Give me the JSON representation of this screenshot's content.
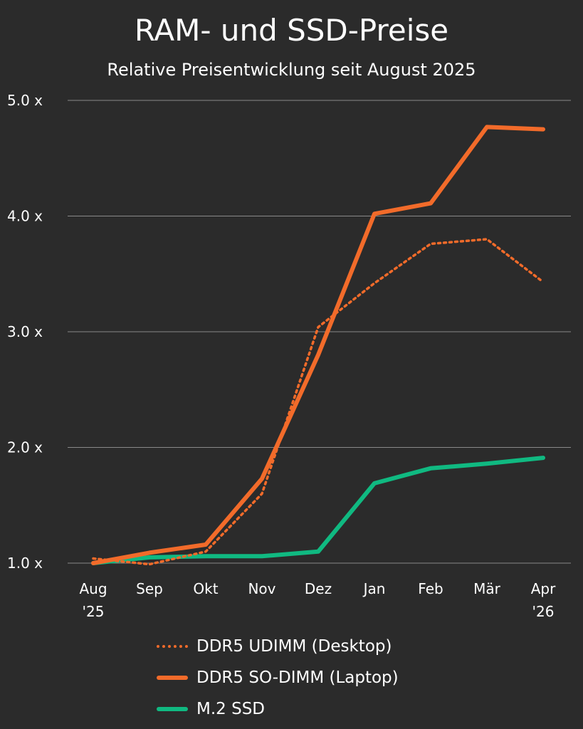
{
  "chart_data": {
    "type": "line",
    "title": "RAM- und SSD-Preise",
    "subtitle": "Relative Preisentwicklung seit August 2025",
    "categories": [
      "Aug|'25",
      "Sep",
      "Okt",
      "Nov",
      "Dez",
      "Jan",
      "Feb",
      "Mär",
      "Apr|'26"
    ],
    "yticks": [
      "1.0 x",
      "2.0 x",
      "3.0 x",
      "4.0 x",
      "5.0 x"
    ],
    "ylim": [
      1.0,
      5.0
    ],
    "grid": true,
    "legend_position": "bottom",
    "series": [
      {
        "name": "DDR5 UDIMM (Desktop)",
        "style": "dotted",
        "color": "#f26b2a",
        "values": [
          1.04,
          0.99,
          1.1,
          1.6,
          3.04,
          3.42,
          3.76,
          3.8,
          3.43
        ]
      },
      {
        "name": "DDR5 SO-DIMM (Laptop)",
        "style": "solid",
        "color": "#f26b2a",
        "values": [
          1.0,
          1.09,
          1.16,
          1.73,
          2.8,
          4.02,
          4.11,
          4.77,
          4.75
        ]
      },
      {
        "name": "M.2 SSD",
        "style": "solid",
        "color": "#10b981",
        "values": [
          1.0,
          1.05,
          1.06,
          1.06,
          1.1,
          1.69,
          1.82,
          1.86,
          1.91
        ]
      }
    ]
  }
}
